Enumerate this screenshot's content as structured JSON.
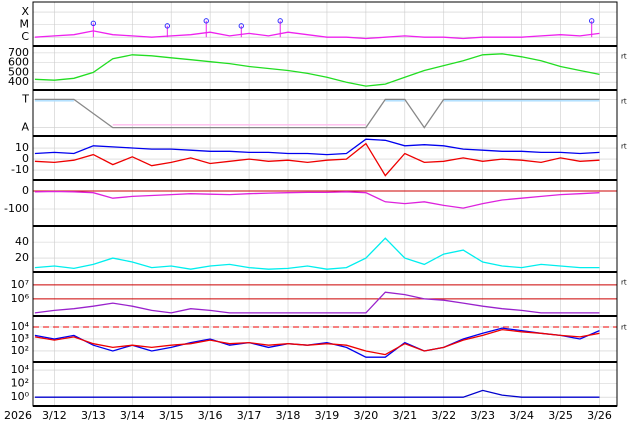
{
  "time_axis": {
    "year": "2026",
    "xlim": [
      11.45,
      26.45
    ],
    "x": [
      11.5,
      12,
      12.5,
      13,
      13.5,
      14,
      14.5,
      15,
      15.5,
      16,
      16.5,
      17,
      17.5,
      18,
      18.5,
      19,
      19.5,
      20,
      20.5,
      21,
      21.5,
      22,
      22.5,
      23,
      23.5,
      24,
      24.5,
      25,
      25.5,
      26
    ],
    "xticks": [
      {
        "value": 12,
        "label": "3/12"
      },
      {
        "value": 13,
        "label": "3/13"
      },
      {
        "value": 14,
        "label": "3/14"
      },
      {
        "value": 15,
        "label": "3/15"
      },
      {
        "value": 16,
        "label": "3/16"
      },
      {
        "value": 17,
        "label": "3/17"
      },
      {
        "value": 18,
        "label": "3/18"
      },
      {
        "value": 19,
        "label": "3/19"
      },
      {
        "value": 20,
        "label": "3/20"
      },
      {
        "value": 21,
        "label": "3/21"
      },
      {
        "value": 22,
        "label": "3/22"
      },
      {
        "value": 23,
        "label": "3/23"
      },
      {
        "value": 24,
        "label": "3/24"
      },
      {
        "value": 25,
        "label": "3/25"
      },
      {
        "value": 26,
        "label": "3/26"
      }
    ]
  },
  "chart_data": [
    {
      "type": "line",
      "ylim": [
        0.3,
        3.8
      ],
      "yticks": [
        {
          "value": 3,
          "label": "X"
        },
        {
          "value": 2,
          "label": "M"
        },
        {
          "value": 1,
          "label": "C"
        }
      ],
      "series": [
        {
          "color": "#ee22ee",
          "values": [
            1.0,
            1.1,
            1.2,
            1.5,
            1.2,
            1.1,
            1.0,
            1.1,
            1.2,
            1.4,
            1.1,
            1.3,
            1.1,
            1.4,
            1.2,
            1.0,
            1.0,
            0.9,
            1.0,
            1.1,
            1.0,
            1.0,
            0.9,
            1.0,
            1.0,
            1.0,
            1.1,
            1.2,
            1.1,
            1.3
          ]
        },
        {
          "color": "#3333ff",
          "marker": true,
          "x": [
            13.0,
            14.9,
            15.9,
            16.8,
            17.8,
            25.8
          ],
          "values": [
            2.1,
            1.9,
            2.3,
            1.9,
            2.3,
            2.3
          ]
        }
      ]
    },
    {
      "type": "line",
      "tag": "rt",
      "ylim": [
        320,
        760
      ],
      "yticks": [
        400,
        500,
        600,
        700
      ],
      "series": [
        {
          "color": "#22dd22",
          "values": [
            430,
            420,
            440,
            500,
            640,
            680,
            670,
            650,
            630,
            610,
            590,
            560,
            540,
            520,
            490,
            450,
            400,
            360,
            380,
            450,
            520,
            570,
            620,
            680,
            690,
            660,
            620,
            560,
            520,
            480
          ]
        }
      ]
    },
    {
      "type": "line",
      "tag": "rt",
      "ylim": [
        -0.3,
        1.3
      ],
      "yticks": [
        {
          "value": 1,
          "label": "T"
        },
        {
          "value": 0,
          "label": "A"
        }
      ],
      "series": [
        {
          "color": "#aaddff",
          "values": [
            0.95,
            0.95,
            0.95,
            null,
            null,
            null,
            null,
            null,
            null,
            null,
            null,
            null,
            null,
            null,
            null,
            null,
            null,
            null,
            0.95,
            0.95,
            null,
            0.95,
            0.95,
            0.95,
            0.95,
            0.95,
            0.95,
            0.95,
            0.95,
            0.95
          ]
        },
        {
          "color": "#ffbbee",
          "values": [
            null,
            null,
            null,
            null,
            0.1,
            0.1,
            0.1,
            0.1,
            0.1,
            0.1,
            0.1,
            0.1,
            0.1,
            0.1,
            0.1,
            0.1,
            0.1,
            0.1,
            null,
            null,
            0.1,
            null,
            null,
            null,
            null,
            null,
            null,
            null,
            null,
            null
          ]
        },
        {
          "color": "#888888",
          "values": [
            1,
            1,
            1,
            0.5,
            0,
            0,
            0,
            0,
            0,
            0,
            0,
            0,
            0,
            0,
            0,
            0,
            0,
            0,
            1,
            1,
            0,
            1,
            1,
            1,
            1,
            1,
            1,
            1,
            1,
            1
          ]
        }
      ]
    },
    {
      "type": "line",
      "tag": "rt",
      "ylim": [
        -19,
        20
      ],
      "yticks": [
        10,
        0,
        -10
      ],
      "series": [
        {
          "color": "#0000ee",
          "values": [
            5,
            6,
            5,
            12,
            11,
            10,
            9,
            9,
            8,
            7,
            7,
            6,
            6,
            5,
            5,
            4,
            5,
            18,
            17,
            12,
            13,
            12,
            9,
            8,
            7,
            7,
            6,
            6,
            5,
            6
          ]
        },
        {
          "color": "#ee0000",
          "values": [
            -2,
            -3,
            -1,
            4,
            -5,
            2,
            -6,
            -3,
            1,
            -4,
            -2,
            0,
            -2,
            -1,
            -3,
            -1,
            0,
            14,
            -15,
            5,
            -3,
            -2,
            1,
            -2,
            0,
            -1,
            -3,
            1,
            -2,
            -1
          ]
        }
      ]
    },
    {
      "type": "line",
      "ylim": [
        -194,
        55
      ],
      "yticks": [
        0,
        -100
      ],
      "reference_lines": [
        0
      ],
      "reference_color": "#cc0000",
      "series": [
        {
          "color": "#dd22dd",
          "values": [
            -5,
            -3,
            -5,
            -10,
            -40,
            -30,
            -25,
            -20,
            -15,
            -18,
            -20,
            -15,
            -12,
            -10,
            -8,
            -8,
            -5,
            -10,
            -60,
            -70,
            -60,
            -80,
            -95,
            -70,
            -50,
            -40,
            -30,
            -20,
            -15,
            -10
          ]
        }
      ]
    },
    {
      "type": "line",
      "ylim": [
        2.5,
        59
      ],
      "yticks": [
        40,
        20
      ],
      "series": [
        {
          "color": "#00eeee",
          "values": [
            8,
            10,
            7,
            12,
            20,
            15,
            8,
            10,
            6,
            10,
            12,
            8,
            6,
            7,
            10,
            6,
            8,
            20,
            45,
            20,
            12,
            25,
            30,
            15,
            10,
            8,
            12,
            10,
            8,
            8
          ]
        }
      ]
    },
    {
      "type": "line",
      "tag": "rt",
      "log": true,
      "ylim": [
        60000,
        70000000
      ],
      "yticks": [
        {
          "value": 10000000,
          "label": "10⁷"
        },
        {
          "value": 1000000,
          "label": "10⁶"
        }
      ],
      "reference_lines": [
        10000000,
        1000000
      ],
      "reference_color": "#cc0000",
      "series": [
        {
          "color": "#9922cc",
          "values": [
            100000,
            150000,
            200000,
            300000,
            500000,
            300000,
            150000,
            100000,
            200000,
            150000,
            100000,
            100000,
            100000,
            100000,
            100000,
            100000,
            100000,
            100000,
            3000000,
            2000000,
            1000000,
            800000,
            500000,
            300000,
            200000,
            150000,
            100000,
            100000,
            100000,
            100000
          ]
        }
      ]
    },
    {
      "type": "line",
      "tag": "rt",
      "log": true,
      "ylim": [
        12,
        68000
      ],
      "yticks": [
        {
          "value": 10000,
          "label": "10⁴"
        },
        {
          "value": 1000,
          "label": "10³"
        },
        {
          "value": 100,
          "label": "10²"
        }
      ],
      "reference_lines": [
        10000
      ],
      "reference_color": "#ee0000",
      "reference_dashed": true,
      "series": [
        {
          "color": "#0000ee",
          "values": [
            2000,
            1000,
            2000,
            300,
            100,
            300,
            100,
            200,
            500,
            1000,
            300,
            500,
            200,
            400,
            300,
            500,
            200,
            30,
            30,
            500,
            100,
            200,
            1000,
            3000,
            8000,
            5000,
            3000,
            2000,
            1000,
            5000
          ]
        },
        {
          "color": "#ee0000",
          "values": [
            1500,
            800,
            1500,
            400,
            200,
            300,
            200,
            300,
            400,
            800,
            400,
            500,
            300,
            400,
            300,
            400,
            300,
            100,
            50,
            400,
            100,
            200,
            800,
            2000,
            6000,
            4000,
            3000,
            2000,
            1500,
            3000
          ]
        }
      ]
    },
    {
      "type": "line",
      "log": true,
      "ylim": [
        0.05,
        110000
      ],
      "yticks": [
        {
          "value": 10000,
          "label": "10⁴"
        },
        {
          "value": 100,
          "label": "10²"
        },
        {
          "value": 1,
          "label": "10⁰"
        }
      ],
      "series": [
        {
          "color": "#0000cc",
          "values": [
            1,
            1,
            1,
            1,
            1,
            1,
            1,
            1,
            1,
            1,
            1,
            1,
            1,
            1,
            1,
            1,
            1,
            1,
            1,
            1,
            1,
            1,
            1,
            10,
            2,
            1,
            1,
            1,
            1,
            1
          ]
        }
      ]
    }
  ]
}
